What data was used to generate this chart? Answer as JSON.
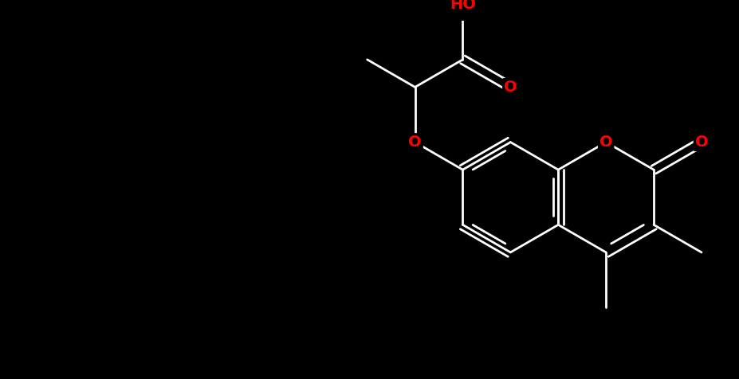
{
  "bg_color": "#000000",
  "O_color": "#ff0000",
  "bond_color": "#ffffff",
  "lw": 2.0,
  "font_size": 14,
  "figsize": [
    9.28,
    4.76
  ],
  "xlim": [
    -1.0,
    11.5
  ],
  "ylim": [
    -0.5,
    6.0
  ]
}
